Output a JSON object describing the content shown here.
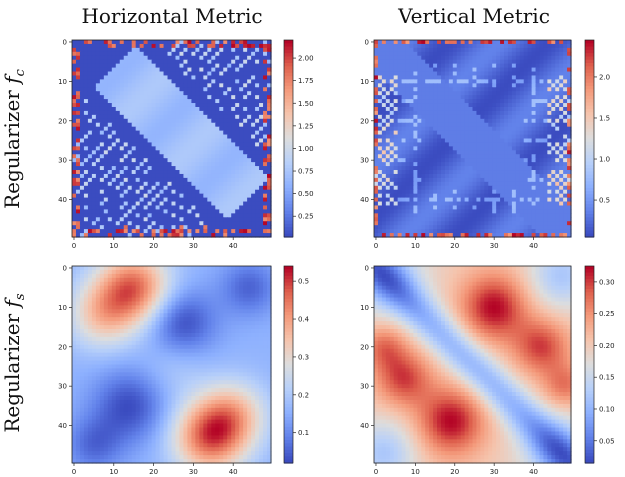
{
  "column_titles": [
    "Horizontal Metric",
    "Vertical Metric"
  ],
  "row_titles": [
    {
      "prefix": "Regularizer ",
      "symbol": "f",
      "sub": "c"
    },
    {
      "prefix": "Regularizer ",
      "symbol": "f",
      "sub": "s"
    }
  ],
  "colormap": "coolwarm",
  "chart_data": [
    {
      "type": "heatmap",
      "panel": "Regularizer f_c / Horizontal Metric",
      "grid_size": 50,
      "pattern": "fc_horizontal",
      "x_ticks": [
        "0",
        "10",
        "20",
        "30",
        "40"
      ],
      "y_ticks": [
        "0",
        "10",
        "20",
        "30",
        "40"
      ],
      "vmin": 0.02,
      "vmax": 2.2,
      "colorbar_ticks": [
        "0.25",
        "0.50",
        "0.75",
        "1.00",
        "1.25",
        "1.50",
        "1.75",
        "2.00"
      ],
      "colorbar_values": [
        0.25,
        0.5,
        0.75,
        1.0,
        1.25,
        1.5,
        1.75,
        2.0
      ]
    },
    {
      "type": "heatmap",
      "panel": "Regularizer f_c / Vertical Metric",
      "grid_size": 50,
      "pattern": "fc_vertical",
      "x_ticks": [
        "0",
        "10",
        "20",
        "30",
        "40"
      ],
      "y_ticks": [
        "0",
        "10",
        "20",
        "30",
        "40"
      ],
      "vmin": 0.05,
      "vmax": 2.45,
      "colorbar_ticks": [
        "0.5",
        "1.0",
        "1.5",
        "2.0"
      ],
      "colorbar_values": [
        0.5,
        1.0,
        1.5,
        2.0
      ]
    },
    {
      "type": "heatmap",
      "panel": "Regularizer f_s / Horizontal Metric",
      "grid_size": 50,
      "pattern": "fs_horizontal",
      "x_ticks": [
        "0",
        "10",
        "20",
        "30",
        "40"
      ],
      "y_ticks": [
        "0",
        "10",
        "20",
        "30",
        "40"
      ],
      "vmin": 0.02,
      "vmax": 0.54,
      "colorbar_ticks": [
        "0.1",
        "0.2",
        "0.3",
        "0.4",
        "0.5"
      ],
      "colorbar_values": [
        0.1,
        0.2,
        0.3,
        0.4,
        0.5
      ]
    },
    {
      "type": "heatmap",
      "panel": "Regularizer f_s / Vertical Metric",
      "grid_size": 50,
      "pattern": "fs_vertical",
      "x_ticks": [
        "0",
        "10",
        "20",
        "30",
        "40"
      ],
      "y_ticks": [
        "0",
        "10",
        "20",
        "30",
        "40"
      ],
      "vmin": 0.015,
      "vmax": 0.325,
      "colorbar_ticks": [
        "0.05",
        "0.10",
        "0.15",
        "0.20",
        "0.25",
        "0.30"
      ],
      "colorbar_values": [
        0.05,
        0.1,
        0.15,
        0.2,
        0.25,
        0.3
      ]
    }
  ]
}
